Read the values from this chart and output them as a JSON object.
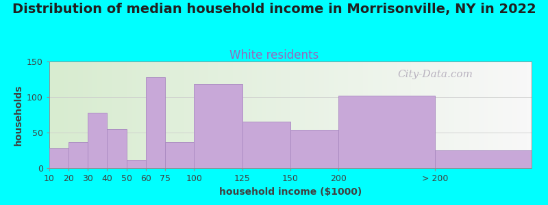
{
  "title": "Distribution of median household income in Morrisonville, NY in 2022",
  "subtitle": "White residents",
  "xlabel": "household income ($1000)",
  "ylabel": "households",
  "background_outer": "#00FFFF",
  "bar_color": "#c8a8d8",
  "bar_edge_color": "#a888c0",
  "categories": [
    "10",
    "20",
    "30",
    "40",
    "50",
    "60",
    "75",
    "100",
    "125",
    "150",
    "200",
    "> 200"
  ],
  "bin_edges": [
    0,
    10,
    20,
    30,
    40,
    50,
    60,
    75,
    100,
    125,
    150,
    200,
    250
  ],
  "values": [
    28,
    37,
    78,
    55,
    12,
    128,
    37,
    118,
    65,
    54,
    102,
    25
  ],
  "ylim": [
    0,
    150
  ],
  "yticks": [
    0,
    50,
    100,
    150
  ],
  "title_fontsize": 14,
  "subtitle_fontsize": 12,
  "subtitle_color": "#9966bb",
  "axis_label_fontsize": 10,
  "tick_fontsize": 9,
  "watermark_text": "City-Data.com",
  "watermark_color": "#b0a8b8",
  "watermark_fontsize": 11,
  "plot_bg_left": "#d8ecd0",
  "plot_bg_right": "#f8f8f8"
}
